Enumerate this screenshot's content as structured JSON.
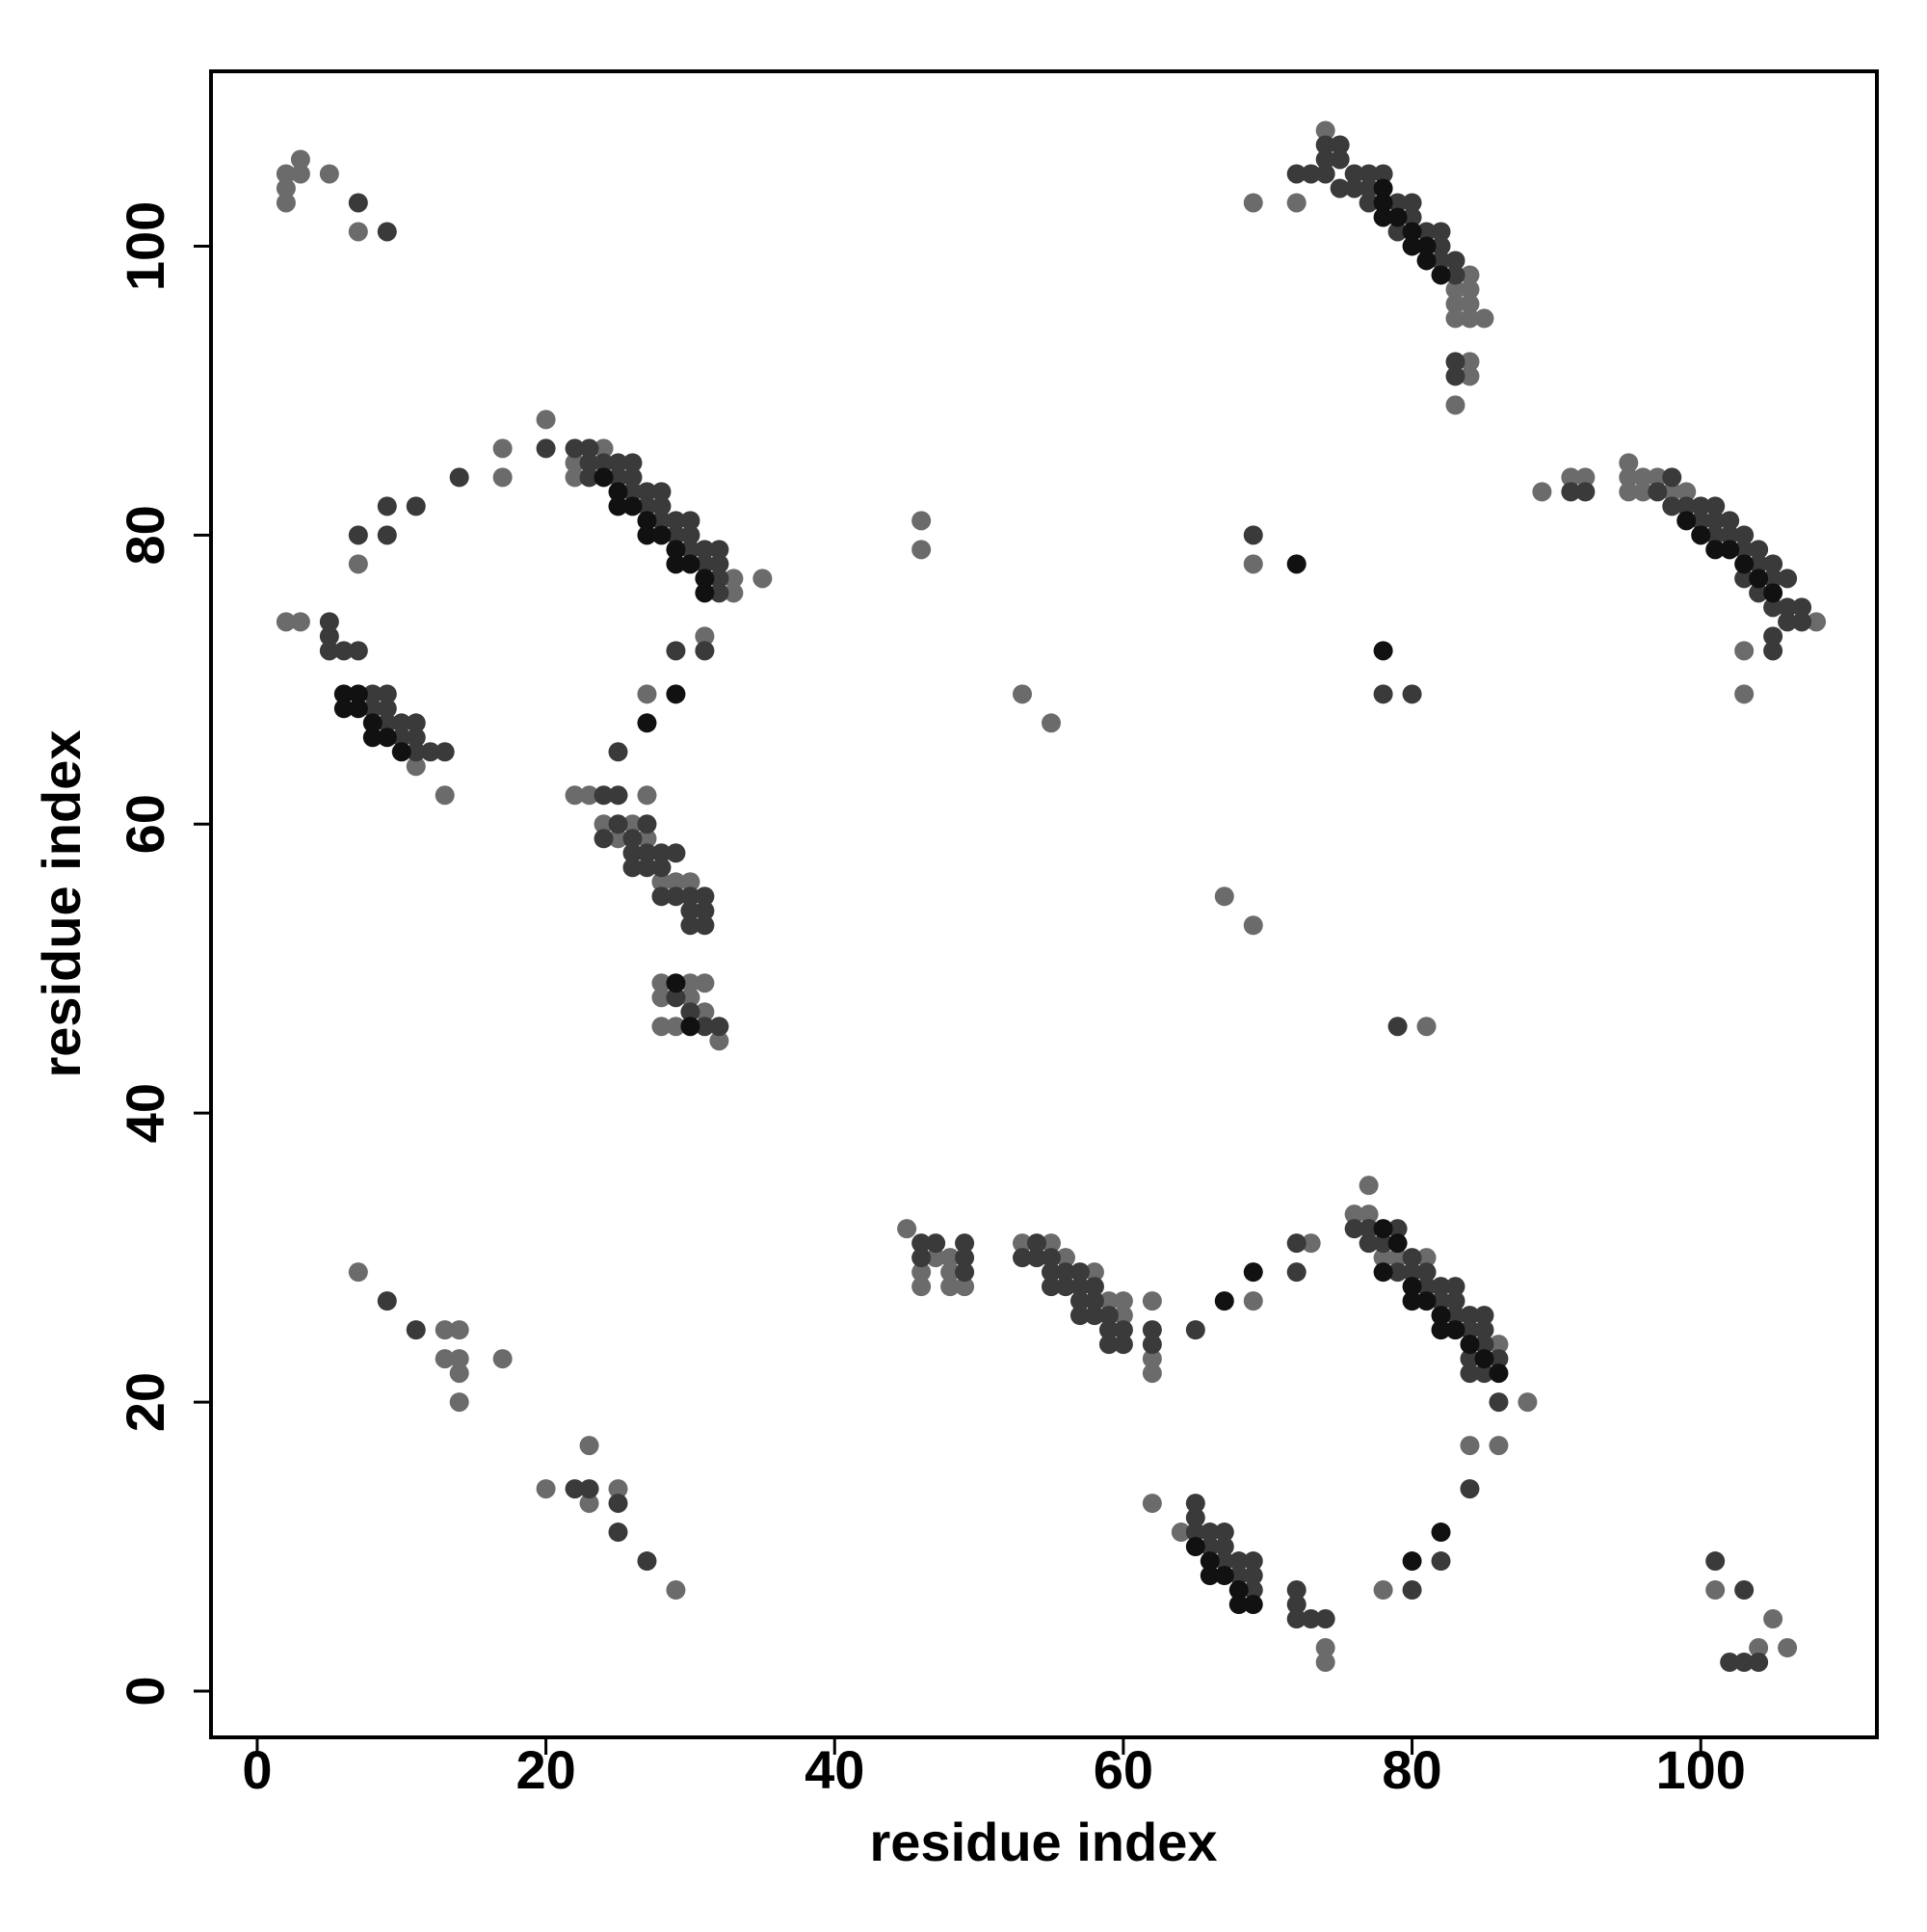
{
  "chart_data": {
    "type": "scatter",
    "x_label": "residue index",
    "y_label": "residue index",
    "xlim": [
      -3.2,
      112.2
    ],
    "ylim": [
      -3.2,
      112.1
    ],
    "xticks": [
      0,
      20,
      40,
      60,
      80,
      100
    ],
    "yticks": [
      0,
      20,
      40,
      60,
      80,
      100
    ],
    "grid": false,
    "series": [
      {
        "color": "#6b6b6b",
        "x": [
          2,
          2,
          2,
          3,
          3,
          5,
          7,
          69,
          72,
          74,
          83,
          83,
          83,
          84,
          84,
          84,
          84,
          85,
          84,
          84,
          83,
          17,
          17,
          7,
          22,
          22,
          24,
          33,
          33,
          35,
          31,
          27,
          2,
          3,
          11,
          13,
          22,
          23,
          27,
          24,
          25,
          26,
          27,
          28,
          29,
          30,
          28,
          28,
          28,
          29,
          30,
          30,
          31,
          31,
          32,
          46,
          46,
          53,
          55,
          67,
          69,
          69,
          89,
          91,
          92,
          95,
          95,
          95,
          96,
          96,
          97,
          98,
          99,
          108,
          103,
          103,
          7,
          13,
          13,
          14,
          14,
          14,
          14,
          17,
          20,
          23,
          23,
          25,
          29,
          45,
          46,
          46,
          47,
          48,
          48,
          48,
          49,
          53,
          55,
          56,
          58,
          59,
          60,
          60,
          62,
          62,
          62,
          69,
          73,
          77,
          76,
          77,
          78,
          79,
          81,
          86,
          88,
          84,
          86,
          78,
          62,
          64,
          74,
          74,
          101,
          105,
          104,
          106,
          81,
          20
        ],
        "values": [
          105,
          104,
          103,
          106,
          105,
          105,
          101,
          103,
          103,
          108,
          97,
          96,
          95,
          98,
          97,
          96,
          95,
          95,
          92,
          91,
          89,
          86,
          84,
          78,
          85,
          84,
          86,
          77,
          76,
          77,
          73,
          69,
          74,
          74,
          64,
          62,
          62,
          62,
          62,
          60,
          59,
          60,
          59,
          56,
          56,
          56,
          49,
          48,
          46,
          46,
          49,
          48,
          49,
          47,
          45,
          81,
          79,
          69,
          67,
          55,
          53,
          78,
          83,
          84,
          84,
          85,
          84,
          83,
          84,
          83,
          84,
          83,
          83,
          74,
          72,
          69,
          29,
          25,
          23,
          25,
          23,
          22,
          20,
          23,
          14,
          17,
          13,
          14,
          7,
          32,
          29,
          28,
          30,
          30,
          29,
          28,
          28,
          31,
          31,
          30,
          29,
          27,
          27,
          26,
          27,
          23,
          22,
          27,
          31,
          35,
          33,
          33,
          30,
          30,
          30,
          24,
          20,
          17,
          17,
          7,
          13,
          11,
          3,
          2,
          7,
          5,
          3,
          3,
          46,
          88
        ]
      },
      {
        "color": "#3a3a3a",
        "x": [
          7,
          9,
          72,
          73,
          74,
          74,
          74,
          75,
          75,
          75,
          76,
          76,
          77,
          77,
          77,
          78,
          79,
          79,
          80,
          80,
          81,
          82,
          82,
          82,
          83,
          83,
          83,
          83,
          20,
          14,
          11,
          9,
          9,
          7,
          22,
          23,
          23,
          23,
          24,
          25,
          25,
          26,
          26,
          26,
          27,
          27,
          28,
          28,
          28,
          29,
          29,
          30,
          30,
          30,
          31,
          31,
          32,
          32,
          32,
          32,
          31,
          29,
          25,
          5,
          5,
          5,
          6,
          7,
          8,
          8,
          9,
          9,
          9,
          10,
          10,
          11,
          11,
          11,
          12,
          13,
          24,
          25,
          24,
          25,
          26,
          26,
          26,
          27,
          27,
          27,
          28,
          28,
          28,
          29,
          29,
          30,
          30,
          30,
          31,
          31,
          31,
          29,
          30,
          31,
          32,
          69,
          78,
          80,
          79,
          91,
          92,
          97,
          98,
          98,
          99,
          100,
          100,
          101,
          101,
          101,
          102,
          102,
          103,
          103,
          103,
          104,
          104,
          104,
          105,
          105,
          105,
          106,
          106,
          106,
          107,
          107,
          105,
          105,
          9,
          11,
          22,
          23,
          25,
          25,
          27,
          46,
          46,
          47,
          49,
          49,
          49,
          53,
          54,
          54,
          55,
          55,
          55,
          56,
          56,
          57,
          57,
          57,
          57,
          58,
          58,
          58,
          59,
          59,
          59,
          60,
          60,
          62,
          62,
          65,
          72,
          72,
          76,
          77,
          77,
          78,
          79,
          79,
          80,
          80,
          81,
          81,
          82,
          82,
          83,
          83,
          83,
          84,
          84,
          84,
          84,
          85,
          85,
          85,
          85,
          86,
          86,
          84,
          82,
          80,
          65,
          65,
          65,
          66,
          66,
          67,
          67,
          67,
          68,
          68,
          69,
          69,
          69,
          72,
          72,
          72,
          73,
          74,
          101,
          103,
          102,
          103,
          104
        ],
        "values": [
          103,
          101,
          105,
          105,
          107,
          106,
          105,
          107,
          106,
          104,
          105,
          104,
          105,
          104,
          103,
          105,
          103,
          101,
          103,
          102,
          101,
          101,
          100,
          99,
          99,
          98,
          92,
          91,
          86,
          84,
          82,
          82,
          80,
          80,
          86,
          86,
          85,
          84,
          85,
          85,
          84,
          85,
          84,
          83,
          83,
          82,
          83,
          82,
          81,
          81,
          80,
          81,
          80,
          79,
          79,
          78,
          79,
          78,
          77,
          76,
          72,
          72,
          65,
          74,
          73,
          72,
          72,
          72,
          69,
          68,
          69,
          68,
          67,
          67,
          66,
          67,
          66,
          65,
          65,
          65,
          62,
          62,
          59,
          60,
          59,
          58,
          57,
          60,
          58,
          57,
          58,
          57,
          55,
          58,
          55,
          55,
          54,
          53,
          55,
          54,
          53,
          48,
          47,
          46,
          46,
          80,
          69,
          69,
          46,
          83,
          83,
          83,
          84,
          82,
          82,
          82,
          81,
          82,
          81,
          80,
          81,
          80,
          80,
          79,
          77,
          79,
          78,
          76,
          78,
          77,
          75,
          77,
          75,
          74,
          75,
          74,
          73,
          72,
          27,
          25,
          14,
          14,
          13,
          11,
          9,
          31,
          30,
          31,
          31,
          30,
          29,
          30,
          31,
          30,
          30,
          29,
          28,
          29,
          28,
          29,
          28,
          27,
          26,
          28,
          27,
          26,
          26,
          25,
          24,
          25,
          24,
          25,
          24,
          25,
          31,
          29,
          32,
          32,
          31,
          31,
          32,
          29,
          30,
          29,
          29,
          28,
          28,
          27,
          28,
          27,
          26,
          26,
          25,
          23,
          22,
          26,
          25,
          24,
          22,
          23,
          20,
          14,
          9,
          7,
          13,
          12,
          11,
          11,
          10,
          11,
          10,
          9,
          9,
          8,
          9,
          8,
          7,
          7,
          6,
          5,
          5,
          5,
          9,
          7,
          2,
          2,
          2
        ]
      },
      {
        "color": "#111111",
        "x": [
          78,
          78,
          78,
          79,
          80,
          80,
          81,
          81,
          82,
          6,
          6,
          7,
          7,
          8,
          8,
          9,
          10,
          24,
          25,
          25,
          26,
          27,
          27,
          28,
          29,
          29,
          30,
          31,
          31,
          27,
          29,
          29,
          30,
          78,
          72,
          99,
          100,
          101,
          102,
          103,
          104,
          105,
          78,
          79,
          78,
          80,
          80,
          81,
          82,
          82,
          83,
          84,
          85,
          86,
          65,
          66,
          66,
          67,
          68,
          68,
          69,
          69,
          67,
          80,
          82
        ],
        "values": [
          104,
          103,
          102,
          102,
          101,
          100,
          100,
          99,
          98,
          69,
          68,
          69,
          68,
          67,
          66,
          66,
          65,
          84,
          83,
          82,
          82,
          81,
          80,
          80,
          79,
          78,
          78,
          77,
          76,
          67,
          69,
          49,
          46,
          72,
          78,
          81,
          80,
          79,
          79,
          78,
          77,
          76,
          32,
          31,
          29,
          28,
          27,
          27,
          26,
          25,
          25,
          24,
          23,
          22,
          10,
          9,
          8,
          8,
          7,
          6,
          6,
          29,
          27,
          9,
          11
        ]
      }
    ]
  }
}
